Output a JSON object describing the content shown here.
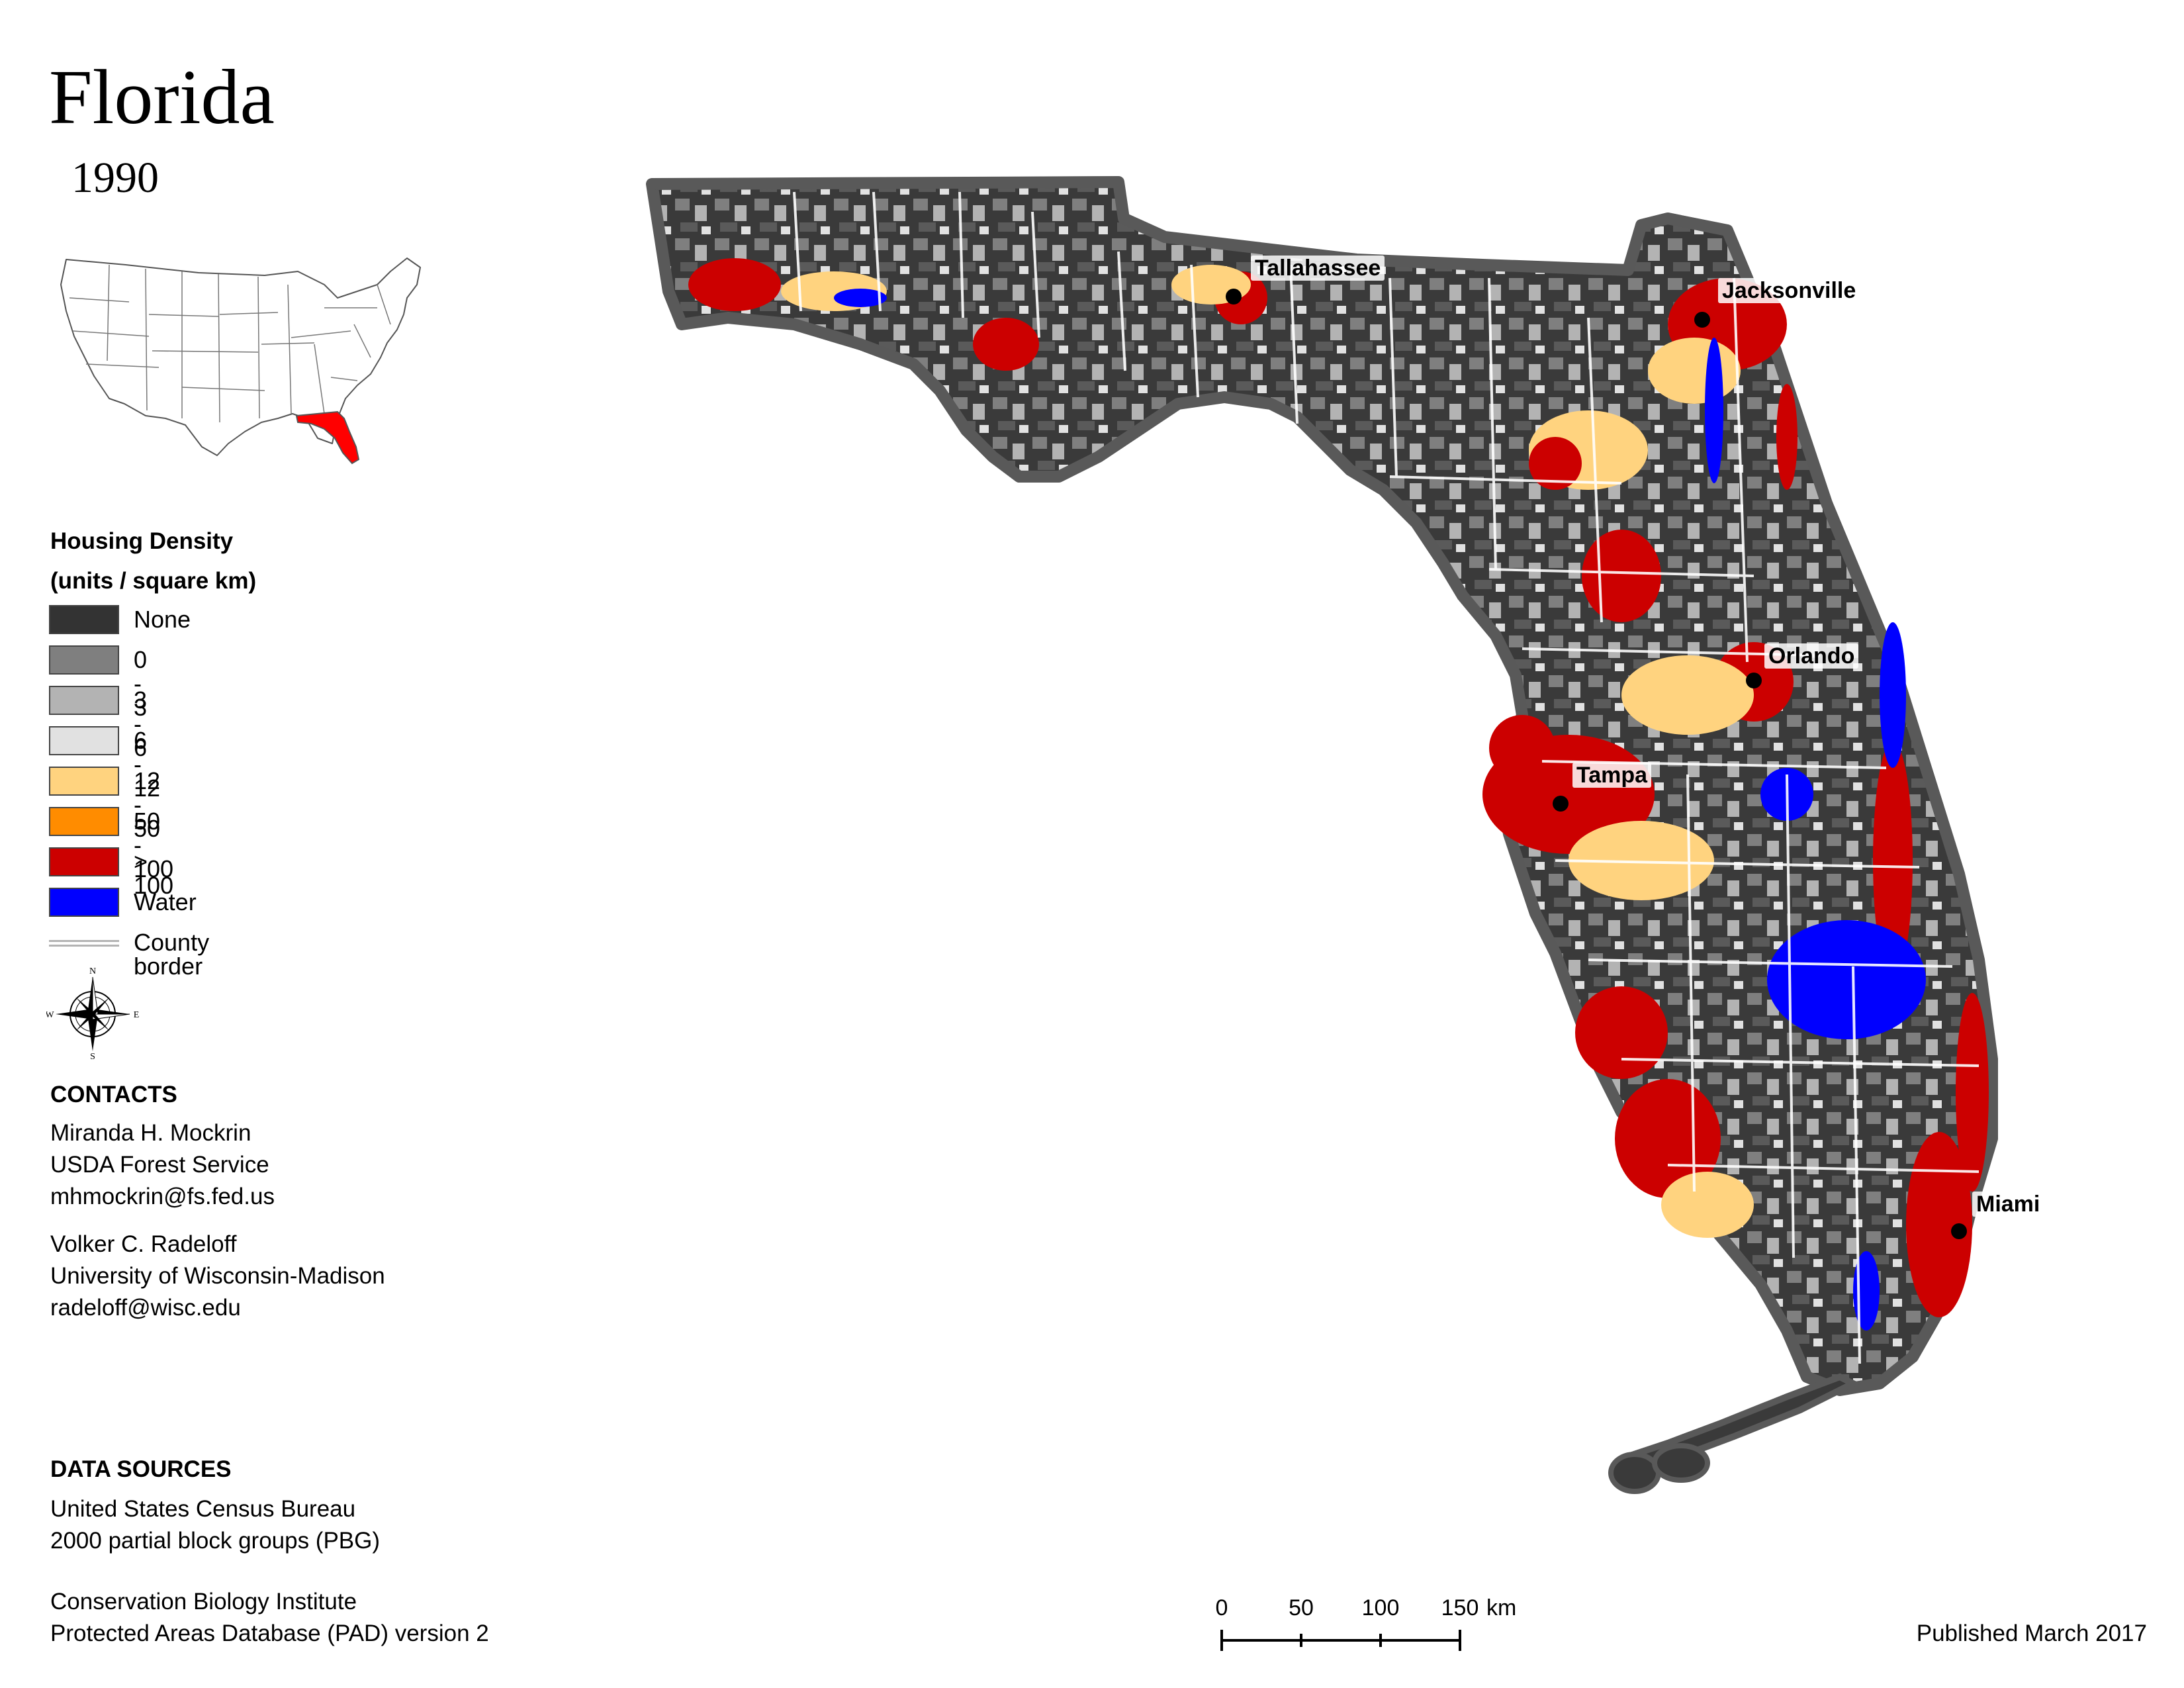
{
  "title": "Florida",
  "year": "1990",
  "legend": {
    "title_line1": "Housing Density",
    "title_line2": "(units / square km)",
    "items": [
      {
        "label": "None",
        "color": "#333333"
      },
      {
        "label": "0 - 3",
        "color": "#7f7f7f"
      },
      {
        "label": "3 - 6",
        "color": "#b3b3b3"
      },
      {
        "label": "6 - 12",
        "color": "#e1e1e1"
      },
      {
        "label": "12 - 50",
        "color": "#ffd37f"
      },
      {
        "label": "50 - 100",
        "color": "#ff8c00"
      },
      {
        "label": "> 100",
        "color": "#cc0000"
      },
      {
        "label": "Water",
        "color": "#0000ff"
      }
    ],
    "border_label": "County border"
  },
  "compass": {
    "n": "N",
    "s": "S",
    "e": "E",
    "w": "W"
  },
  "contacts": {
    "heading": "CONTACTS",
    "people": [
      {
        "name": "Miranda H. Mockrin",
        "org": "USDA Forest Service",
        "email": "mhmockrin@fs.fed.us"
      },
      {
        "name": "Volker C. Radeloff",
        "org": "University of Wisconsin-Madison",
        "email": "radeloff@wisc.edu"
      }
    ]
  },
  "sources": {
    "heading": "DATA SOURCES",
    "lines": [
      "United States Census Bureau",
      "2000 partial block groups (PBG)",
      "Conservation Biology Institute",
      "Protected Areas Database (PAD) version 2"
    ]
  },
  "cities": [
    {
      "name": "Tallahassee"
    },
    {
      "name": "Jacksonville"
    },
    {
      "name": "Orlando"
    },
    {
      "name": "Tampa"
    },
    {
      "name": "Miami"
    }
  ],
  "scale": {
    "ticks": [
      "0",
      "50",
      "100",
      "150"
    ],
    "unit": "km"
  },
  "published": "Published March 2017",
  "colors": {
    "highlight_state": "#ff0000",
    "county_border": "#ffffff",
    "state_outline": "#595959"
  }
}
